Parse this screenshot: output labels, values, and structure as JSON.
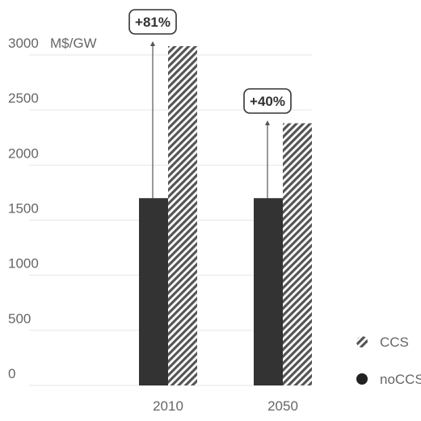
{
  "chart_data": {
    "type": "bar",
    "categories": [
      "2010",
      "2050"
    ],
    "series": [
      {
        "name": "noCCS",
        "values": [
          1700,
          1700
        ],
        "color": "#333333",
        "pattern": "solid"
      },
      {
        "name": "CCS",
        "values": [
          3080,
          2380
        ],
        "color": "#555555",
        "pattern": "hatched"
      }
    ],
    "ylim": [
      0,
      3000
    ],
    "yticks": [
      0,
      500,
      1000,
      1500,
      2000,
      2500,
      3000
    ],
    "ylabel": "M$/GW",
    "grid": true,
    "legend": {
      "placement": "bottom-right",
      "order": [
        "CCS",
        "noCCS"
      ]
    },
    "annotations": [
      {
        "category": "2010",
        "text": "+81%"
      },
      {
        "category": "2050",
        "text": "+40%"
      }
    ]
  }
}
